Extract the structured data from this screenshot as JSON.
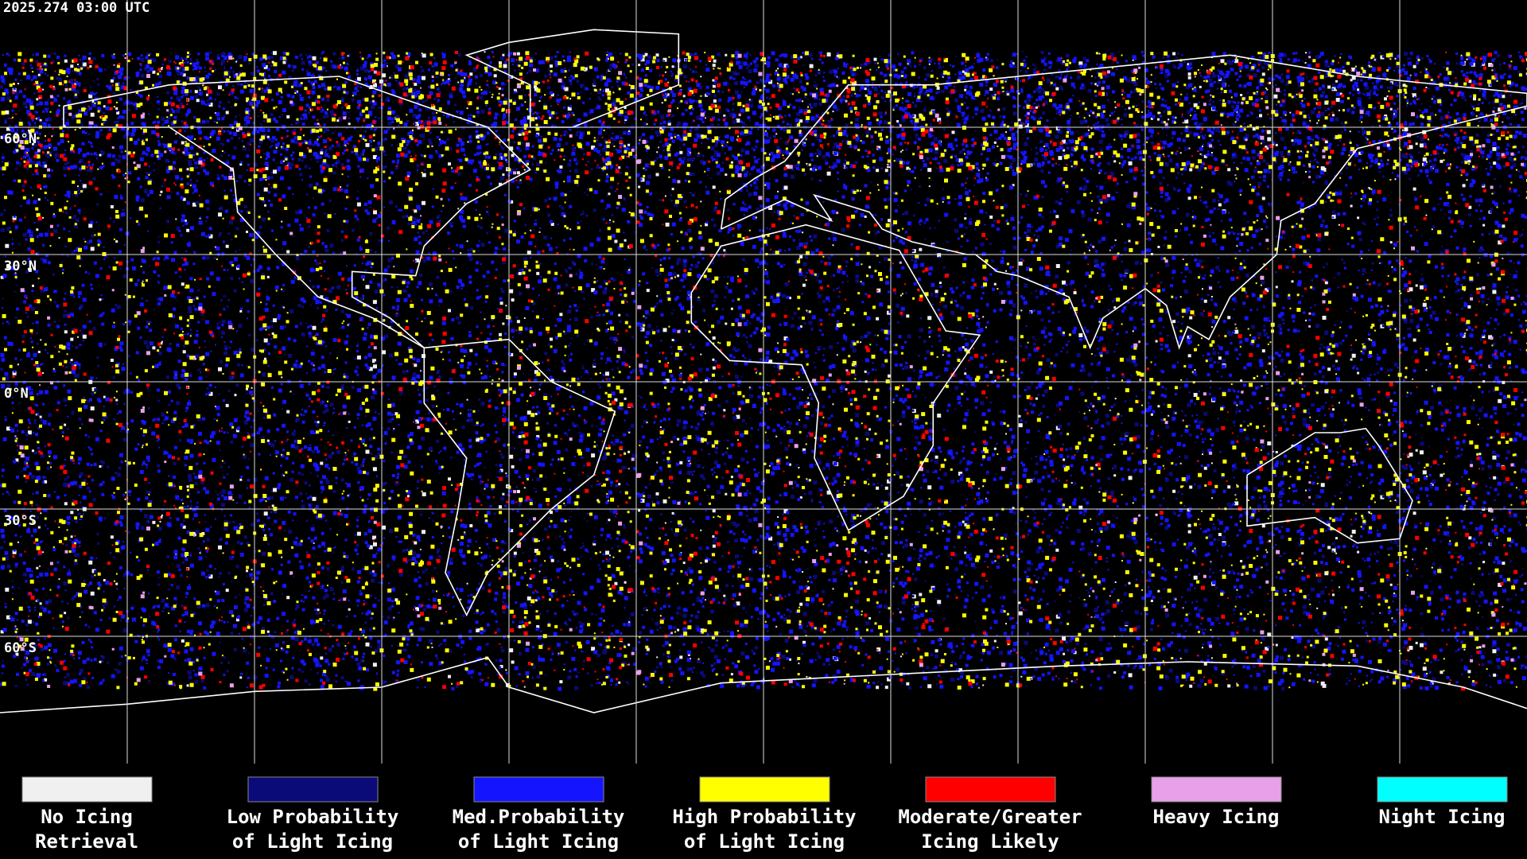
{
  "header": {
    "title": "2025.274 03:00 UTC"
  },
  "map": {
    "lat_labels": [
      "60°N",
      "30°N",
      "0°N",
      "30°S",
      "60°S"
    ]
  },
  "legend": {
    "items": [
      {
        "color": "#f0f0f0",
        "label": [
          "No Icing",
          "Retrieval"
        ]
      },
      {
        "color": "#0a0a78",
        "label": [
          "Low Probability",
          "of Light Icing"
        ]
      },
      {
        "color": "#1414ff",
        "label": [
          "Med.Probability",
          "of Light Icing"
        ]
      },
      {
        "color": "#ffff00",
        "label": [
          "High Probability",
          "of Light Icing"
        ]
      },
      {
        "color": "#ff0000",
        "label": [
          "Moderate/Greater",
          "Icing Likely"
        ]
      },
      {
        "color": "#e8a0e8",
        "label": [
          "Heavy Icing"
        ]
      },
      {
        "color": "#00ffff",
        "label": [
          "Night Icing"
        ]
      }
    ]
  }
}
